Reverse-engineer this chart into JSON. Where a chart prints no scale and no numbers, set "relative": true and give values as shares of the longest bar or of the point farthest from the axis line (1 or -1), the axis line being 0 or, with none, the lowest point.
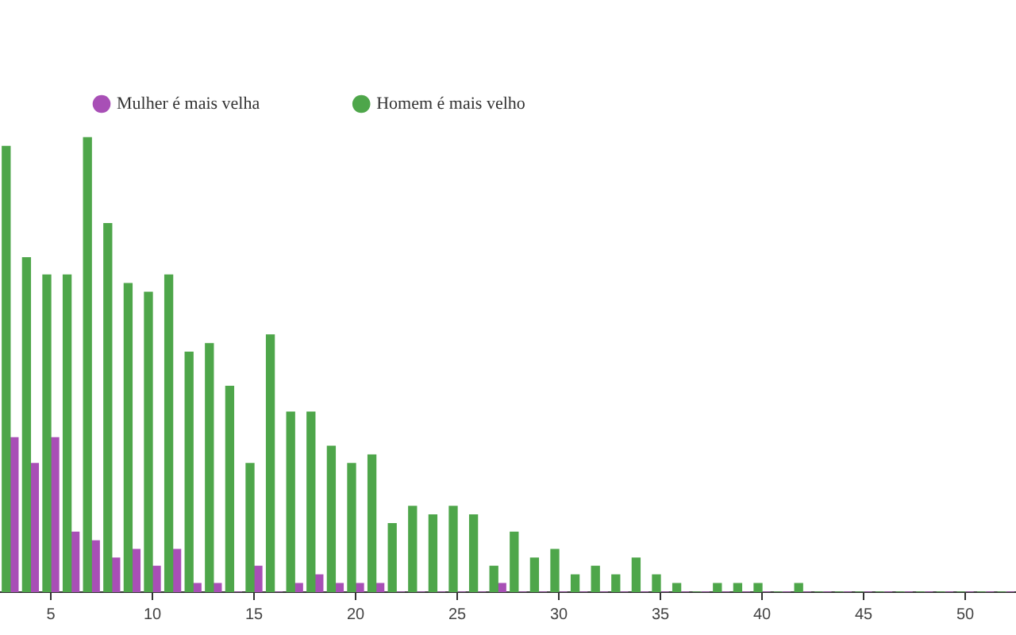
{
  "chart_data": {
    "type": "bar",
    "relative": true,
    "legend": "top left",
    "categories": [
      null,
      null,
      "5",
      null,
      null,
      null,
      null,
      "10",
      null,
      null,
      null,
      null,
      "15",
      null,
      null,
      null,
      null,
      "20",
      null,
      null,
      null,
      null,
      "25",
      null,
      null,
      null,
      null,
      "30",
      null,
      null,
      null,
      null,
      "35",
      null,
      null,
      null,
      null,
      "40",
      null,
      null,
      null,
      null,
      "45",
      null,
      null,
      null,
      null,
      "50",
      null,
      null
    ],
    "series": [
      {
        "name": "Homem é mais velho",
        "color": "#4ea64a",
        "values": [
          0.981,
          0.736,
          0.698,
          0.698,
          1,
          0.811,
          0.679,
          0.66,
          0.698,
          0.528,
          0.547,
          0.453,
          0.283,
          0.566,
          0.396,
          0.396,
          0.321,
          0.283,
          0.302,
          0.151,
          0.189,
          0.17,
          0.189,
          0.17,
          0.057,
          0.132,
          0.075,
          0.094,
          0.038,
          0.057,
          0.038,
          0.075,
          0.038,
          0.019,
          0,
          0.019,
          0.019,
          0.019,
          0,
          0.019,
          0,
          0,
          0,
          0,
          0,
          0,
          0,
          0,
          0,
          0
        ]
      },
      {
        "name": "Mulher é mais velha",
        "color": "#a84fb6",
        "values": [
          0.34,
          0.283,
          0.34,
          0.132,
          0.113,
          0.075,
          0.094,
          0.057,
          0.094,
          0.019,
          0.019,
          0,
          0.057,
          0,
          0.019,
          0.038,
          0.019,
          0.019,
          0.019,
          0,
          0,
          0,
          0,
          0,
          0.019,
          0,
          0,
          0,
          0,
          0,
          0,
          0,
          0,
          0,
          0,
          0,
          0,
          0,
          0,
          0,
          0,
          0,
          0,
          0,
          0,
          0,
          0,
          0,
          0,
          0
        ]
      }
    ]
  }
}
